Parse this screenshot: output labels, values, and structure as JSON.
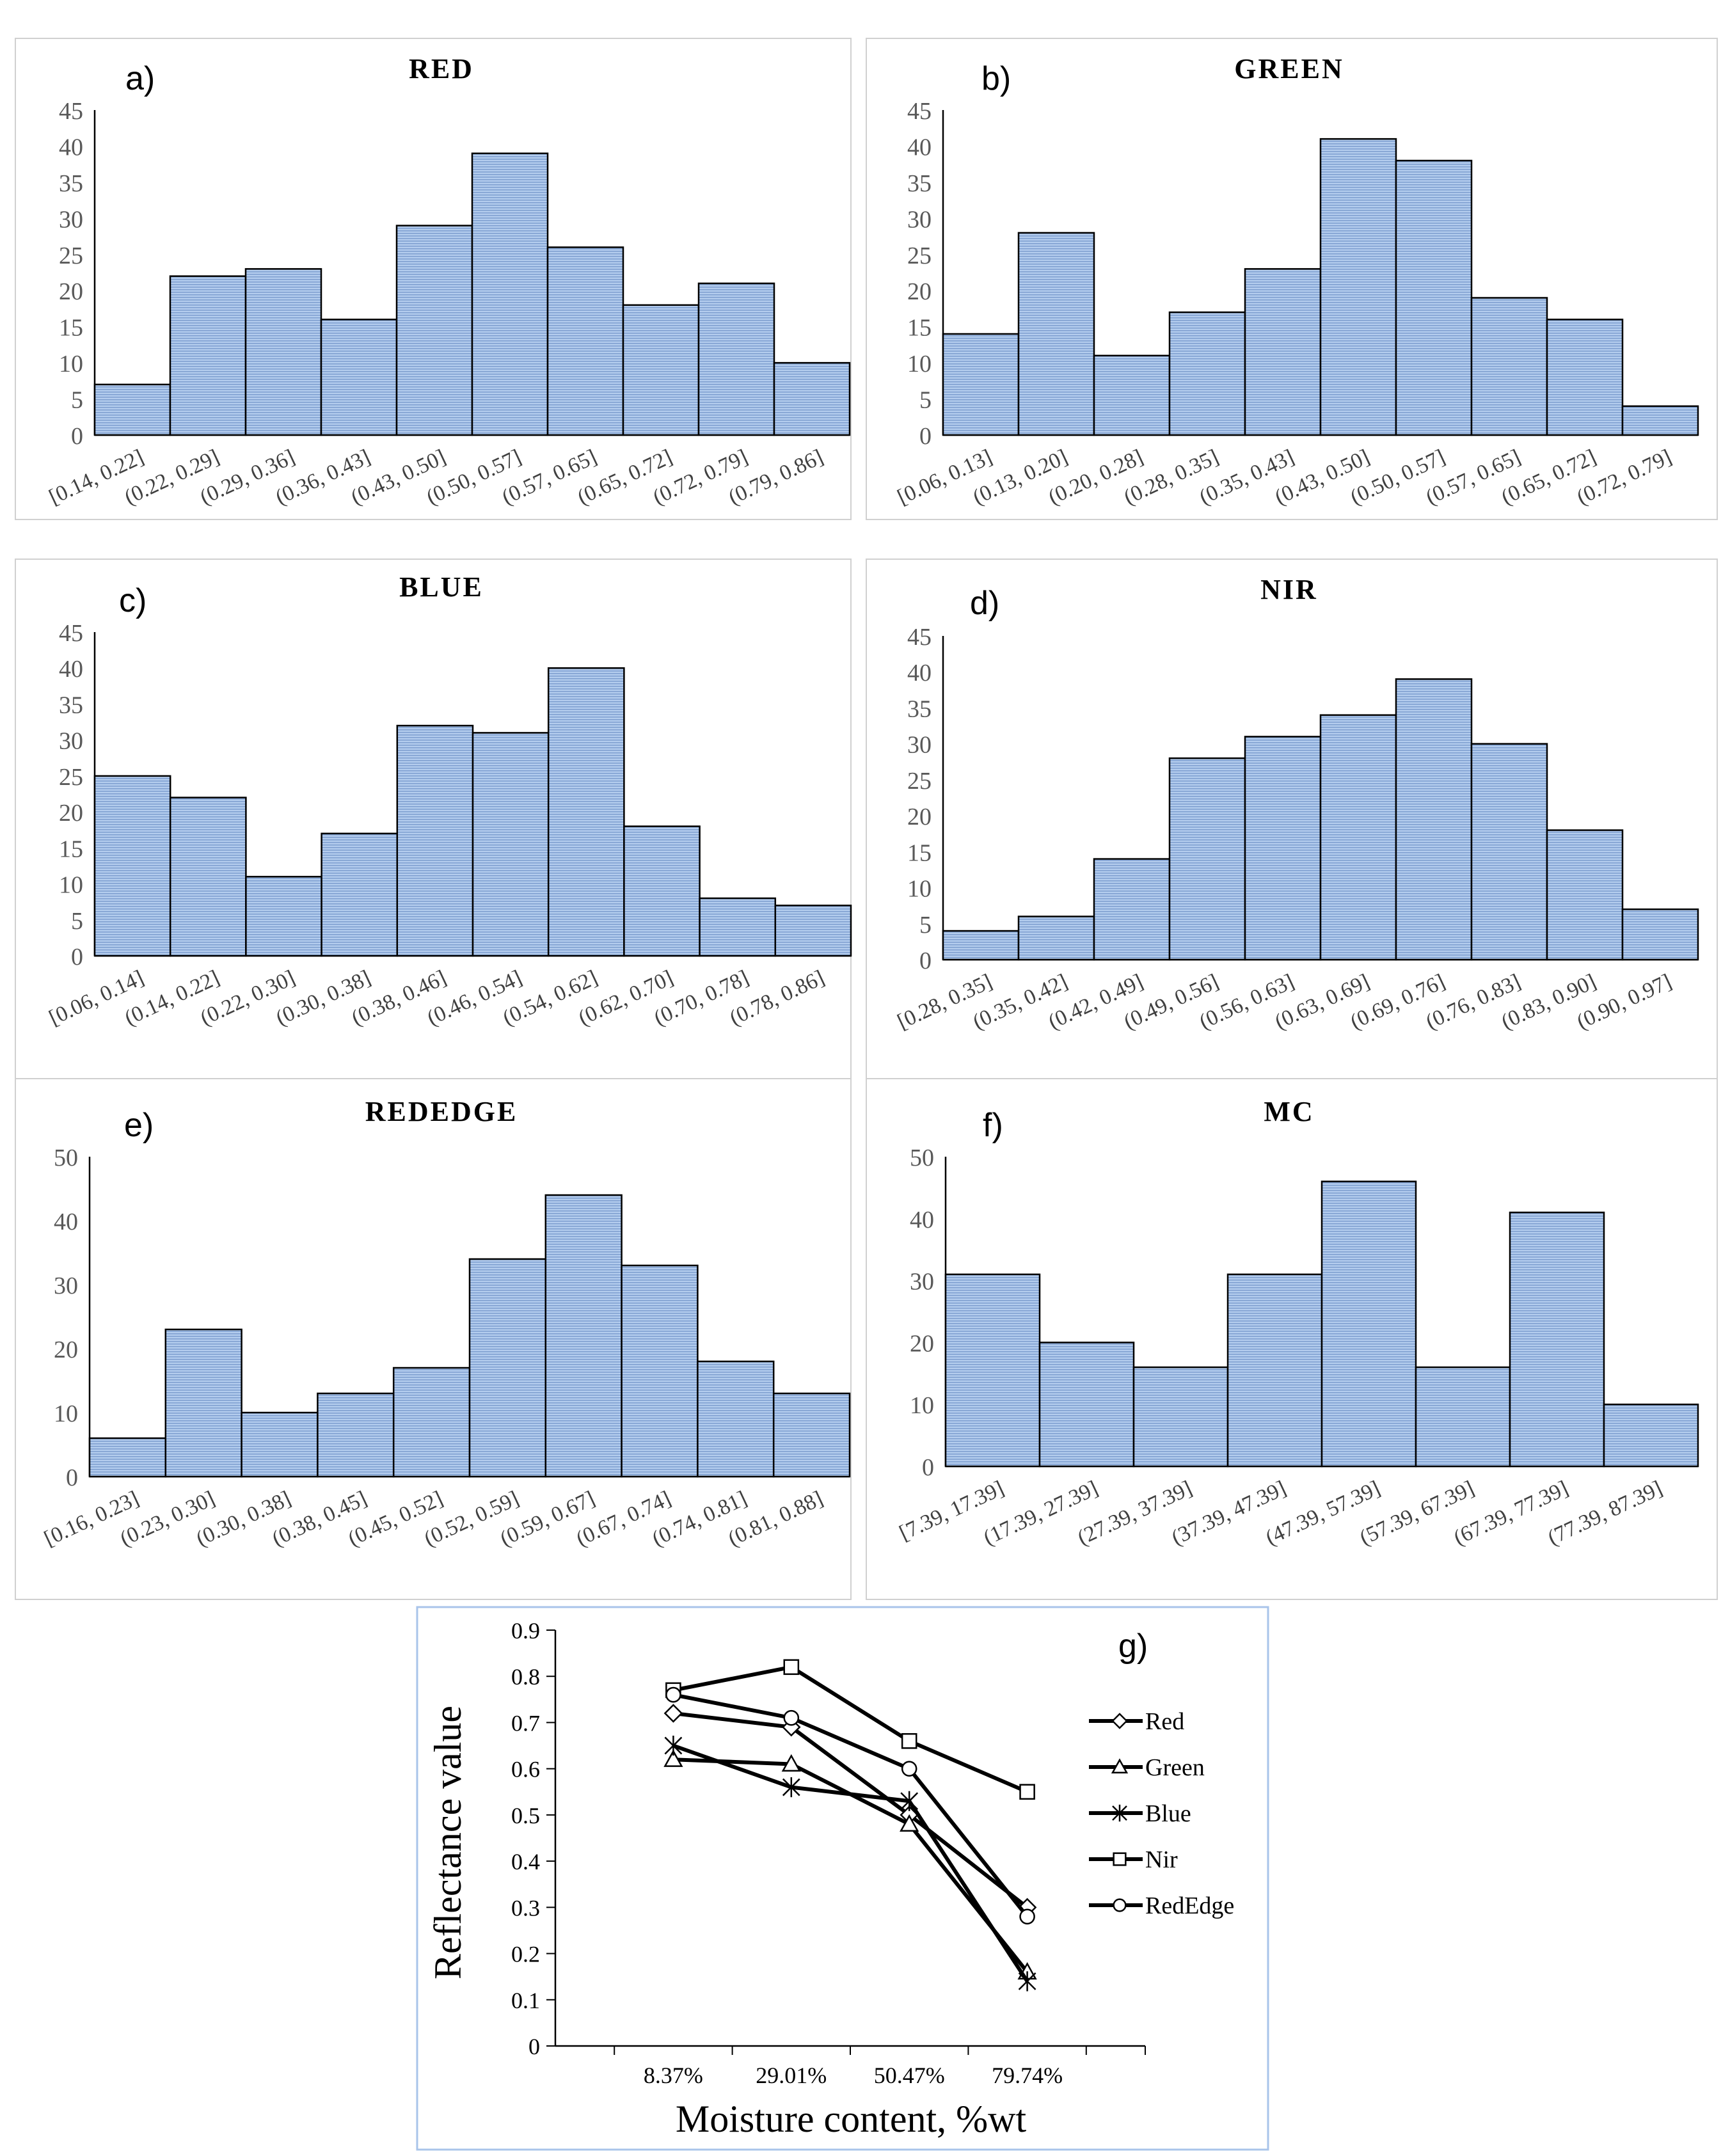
{
  "chart_data": [
    {
      "type": "bar",
      "panel": "a)",
      "title": "RED",
      "categories": [
        "[0.14, 0.22]",
        "(0.22, 0.29]",
        "(0.29, 0.36]",
        "(0.36, 0.43]",
        "(0.43, 0.50]",
        "(0.50, 0.57]",
        "(0.57, 0.65]",
        "(0.65, 0.72]",
        "(0.72, 0.79]",
        "(0.79, 0.86]"
      ],
      "values": [
        7,
        22,
        23,
        16,
        29,
        39,
        26,
        18,
        21,
        10
      ],
      "ylim": [
        0,
        45
      ],
      "yticks": [
        "0",
        "5",
        "10",
        "15",
        "20",
        "25",
        "30",
        "35",
        "40",
        "45"
      ],
      "xlabel": "",
      "ylabel": ""
    },
    {
      "type": "bar",
      "panel": "b)",
      "title": "GREEN",
      "categories": [
        "[0.06, 0.13]",
        "(0.13, 0.20]",
        "(0.20, 0.28]",
        "(0.28, 0.35]",
        "(0.35, 0.43]",
        "(0.43, 0.50]",
        "(0.50, 0.57]",
        "(0.57, 0.65]",
        "(0.65, 0.72]",
        "(0.72, 0.79]"
      ],
      "values": [
        14,
        28,
        11,
        17,
        23,
        41,
        38,
        19,
        16,
        4
      ],
      "ylim": [
        0,
        45
      ],
      "yticks": [
        "0",
        "5",
        "10",
        "15",
        "20",
        "25",
        "30",
        "35",
        "40",
        "45"
      ],
      "xlabel": "",
      "ylabel": ""
    },
    {
      "type": "bar",
      "panel": "c)",
      "title": "BLUE",
      "categories": [
        "[0.06, 0.14]",
        "(0.14, 0.22]",
        "(0.22, 0.30]",
        "(0.30, 0.38]",
        "(0.38, 0.46]",
        "(0.46, 0.54]",
        "(0.54, 0.62]",
        "(0.62, 0.70]",
        "(0.70, 0.78]",
        "(0.78, 0.86]"
      ],
      "values": [
        25,
        22,
        11,
        17,
        32,
        31,
        40,
        18,
        8,
        7
      ],
      "ylim": [
        0,
        45
      ],
      "yticks": [
        "0",
        "5",
        "10",
        "15",
        "20",
        "25",
        "30",
        "35",
        "40",
        "45"
      ],
      "xlabel": "",
      "ylabel": ""
    },
    {
      "type": "bar",
      "panel": "d)",
      "title": "NIR",
      "categories": [
        "[0.28, 0.35]",
        "(0.35, 0.42]",
        "(0.42, 0.49]",
        "(0.49, 0.56]",
        "(0.56, 0.63]",
        "(0.63, 0.69]",
        "(0.69, 0.76]",
        "(0.76, 0.83]",
        "(0.83, 0.90]",
        "(0.90, 0.97]"
      ],
      "values": [
        4,
        6,
        14,
        28,
        31,
        34,
        39,
        30,
        18,
        7
      ],
      "ylim": [
        0,
        45
      ],
      "yticks": [
        "0",
        "5",
        "10",
        "15",
        "20",
        "25",
        "30",
        "35",
        "40",
        "45"
      ],
      "xlabel": "",
      "ylabel": ""
    },
    {
      "type": "bar",
      "panel": "e)",
      "title": "REDEDGE",
      "categories": [
        "[0.16, 0.23]",
        "(0.23, 0.30]",
        "(0.30, 0.38]",
        "(0.38, 0.45]",
        "(0.45, 0.52]",
        "(0.52, 0.59]",
        "(0.59, 0.67]",
        "(0.67, 0.74]",
        "(0.74, 0.81]",
        "(0.81, 0.88]"
      ],
      "values": [
        6,
        23,
        10,
        13,
        17,
        34,
        44,
        33,
        18,
        13
      ],
      "ylim": [
        0,
        50
      ],
      "yticks": [
        "0",
        "10",
        "20",
        "30",
        "40",
        "50"
      ],
      "xlabel": "",
      "ylabel": ""
    },
    {
      "type": "bar",
      "panel": "f)",
      "title": "MC",
      "categories": [
        "[7.39, 17.39]",
        "(17.39, 27.39]",
        "(27.39, 37.39]",
        "(37.39, 47.39]",
        "(47.39, 57.39]",
        "(57.39, 67.39]",
        "(67.39, 77.39]",
        "(77.39, 87.39]"
      ],
      "values": [
        31,
        20,
        16,
        31,
        46,
        16,
        41,
        10
      ],
      "ylim": [
        0,
        50
      ],
      "yticks": [
        "0",
        "10",
        "20",
        "30",
        "40",
        "50"
      ],
      "xlabel": "",
      "ylabel": ""
    },
    {
      "type": "line",
      "panel": "g)",
      "title": "",
      "categories": [
        "8.37%",
        "29.01%",
        "50.47%",
        "79.74%"
      ],
      "series": [
        {
          "name": "Red",
          "marker": "diamond",
          "values": [
            0.72,
            0.69,
            0.5,
            0.3
          ]
        },
        {
          "name": "Green",
          "marker": "triangle",
          "values": [
            0.62,
            0.61,
            0.48,
            0.16
          ]
        },
        {
          "name": "Blue",
          "marker": "asterisk",
          "values": [
            0.65,
            0.56,
            0.53,
            0.14
          ]
        },
        {
          "name": "Nir",
          "marker": "square",
          "values": [
            0.77,
            0.82,
            0.66,
            0.55
          ]
        },
        {
          "name": "RedEdge",
          "marker": "circle",
          "values": [
            0.76,
            0.71,
            0.6,
            0.28
          ]
        }
      ],
      "ylim": [
        0,
        0.9
      ],
      "yticks": [
        "0",
        "0.1",
        "0.2",
        "0.3",
        "0.4",
        "0.5",
        "0.6",
        "0.7",
        "0.8",
        "0.9"
      ],
      "xlabel": "Moisture content, %wt",
      "ylabel": "Reflectance value"
    }
  ],
  "colors": {
    "bar_fill": "#a9c4ea",
    "bar_stripe": "#7f9fd0",
    "bar_stroke": "#000000",
    "panel_border": "#d0d0d0",
    "line_color": "#000000",
    "line_chart_border": "#a9c4ea"
  }
}
